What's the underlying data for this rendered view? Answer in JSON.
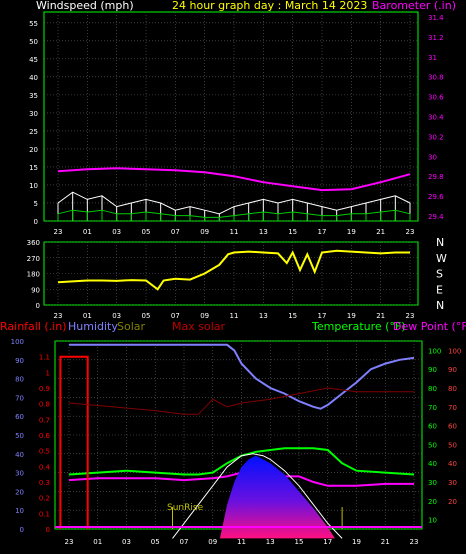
{
  "chart_data": [
    {
      "type": "line",
      "title": "24 hour graph day : March 14 2023",
      "ylabel_left": "Windspeed (mph)",
      "ylabel_right": "Barometer (.in)",
      "x_ticks": [
        "23",
        "01",
        "03",
        "05",
        "07",
        "09",
        "11",
        "13",
        "15",
        "17",
        "19",
        "21",
        "23"
      ],
      "y_left_ticks": [
        0,
        5,
        10,
        15,
        20,
        25,
        30,
        35,
        40,
        45,
        50,
        55
      ],
      "ylim_left": [
        0,
        58
      ],
      "y_right_ticks": [
        "29.4",
        "29.6",
        "29.8",
        "30",
        "30.2",
        "30.4",
        "30.6",
        "30.8",
        "31",
        "31.2",
        "31.4"
      ],
      "ylim_right": [
        29.35,
        31.45
      ],
      "series": [
        {
          "color": "#ffffff",
          "x": [
            0,
            1,
            2,
            3,
            4,
            5,
            6,
            7,
            8,
            9,
            10,
            11,
            12,
            13,
            14,
            15,
            16,
            17,
            18,
            19,
            20,
            21,
            22,
            23,
            24
          ],
          "values": [
            5,
            8,
            6,
            7,
            4,
            5,
            6,
            5,
            3,
            4,
            3,
            2,
            4,
            5,
            6,
            5,
            6,
            5,
            4,
            3,
            4,
            5,
            6,
            7,
            5
          ]
        },
        {
          "color": "#00cc00",
          "x": [
            0,
            1,
            2,
            3,
            4,
            5,
            6,
            7,
            8,
            9,
            10,
            11,
            12,
            13,
            14,
            15,
            16,
            17,
            18,
            19,
            20,
            21,
            22,
            23,
            24
          ],
          "values": [
            2,
            3,
            2.5,
            3,
            2,
            2,
            2.5,
            2,
            1.5,
            1.5,
            1,
            1,
            1.5,
            2,
            2.5,
            2,
            2.5,
            2,
            1.5,
            1.5,
            2,
            2,
            2.5,
            3,
            2
          ]
        },
        {
          "color": "#ff00ff",
          "x": [
            0,
            2,
            4,
            6,
            8,
            10,
            12,
            14,
            16,
            18,
            20,
            22,
            24
          ],
          "values": [
            29.85,
            29.87,
            29.88,
            29.87,
            29.86,
            29.84,
            29.8,
            29.74,
            29.7,
            29.66,
            29.67,
            29.74,
            29.82
          ]
        }
      ]
    },
    {
      "type": "scatter",
      "y_ticks": [
        0,
        90,
        180,
        270,
        360
      ],
      "ylim": [
        0,
        360
      ],
      "direction_labels": [
        "N",
        "W",
        "S",
        "E",
        "N"
      ],
      "x_ticks": [
        "23",
        "01",
        "03",
        "05",
        "07",
        "09",
        "11",
        "13",
        "15",
        "17",
        "19",
        "21",
        "23"
      ],
      "series": [
        {
          "color": "#ffff00",
          "x": [
            0,
            1,
            2,
            3,
            4,
            5,
            6,
            6.8,
            7.2,
            8,
            9,
            10,
            11,
            11.4,
            11.6,
            12,
            13,
            14,
            15,
            15.6,
            16,
            16.5,
            17,
            17.5,
            18,
            19,
            20,
            21,
            22,
            23,
            24
          ],
          "values": [
            130,
            135,
            140,
            140,
            138,
            142,
            140,
            90,
            140,
            150,
            145,
            180,
            230,
            270,
            290,
            300,
            305,
            300,
            295,
            240,
            300,
            200,
            290,
            190,
            300,
            310,
            305,
            300,
            295,
            300,
            300
          ]
        }
      ]
    },
    {
      "type": "line",
      "labels": {
        "rainfall": "Rainfall (.in)",
        "humidity": "Humidity",
        "solar": "Solar",
        "max_solar": "Max solar",
        "temperature": "Temperature (°F)",
        "dew_point": "Dew Point (°F)",
        "sunrise": "SunRise"
      },
      "x_ticks": [
        "23",
        "01",
        "03",
        "05",
        "07",
        "09",
        "11",
        "13",
        "15",
        "17",
        "19",
        "21",
        "23"
      ],
      "y_rain_ticks": [
        "0",
        "0.1",
        "0.2",
        "0.3",
        "0.4",
        "0.5",
        "0.6",
        "0.7",
        "0.8",
        "0.9",
        "1",
        "1.1"
      ],
      "y_hum_ticks": [
        0,
        10,
        20,
        30,
        40,
        50,
        60,
        70,
        80,
        90,
        100
      ],
      "y_temp_ticks": [
        10,
        20,
        30,
        40,
        50,
        60,
        70,
        80,
        90,
        100
      ],
      "y_dew_ticks": [
        20,
        30,
        40,
        50,
        60,
        70,
        80,
        90,
        100
      ],
      "series": [
        {
          "name": "Humidity",
          "color": "#8080ff",
          "x": [
            0,
            3,
            6,
            9,
            10.5,
            11,
            11.5,
            12,
            13,
            14,
            15,
            16,
            17,
            17.5,
            18,
            19,
            20,
            21,
            22,
            23,
            24
          ],
          "values": [
            98,
            98,
            98,
            98,
            98,
            98,
            95,
            88,
            80,
            75,
            72,
            68,
            65,
            64,
            66,
            72,
            78,
            85,
            88,
            90,
            91
          ]
        },
        {
          "name": "Temperature (°F)",
          "color": "#00ff00",
          "x": [
            0,
            2,
            4,
            6,
            8,
            9,
            10,
            11,
            12,
            13,
            14,
            15,
            16,
            17,
            18,
            19,
            20,
            22,
            24
          ],
          "values": [
            34,
            35,
            36,
            35,
            34,
            34,
            35,
            40,
            44,
            46,
            47,
            48,
            48,
            48,
            47,
            40,
            36,
            35,
            34
          ]
        },
        {
          "name": "Dew Point (°F)",
          "color": "#ff00ff",
          "x": [
            0,
            2,
            4,
            6,
            8,
            10,
            11,
            12,
            13,
            14,
            15,
            16,
            17,
            18,
            19,
            20,
            22,
            24
          ],
          "values": [
            31,
            32,
            32,
            32,
            31,
            32,
            33,
            35,
            35,
            34,
            33,
            33,
            30,
            28,
            28,
            28,
            29,
            29
          ]
        },
        {
          "name": "Max solar",
          "color": "#ffffff",
          "x": [
            7.2,
            8,
            9,
            10,
            11,
            12,
            12.8,
            13.5,
            14,
            15,
            16,
            17,
            18,
            19.0
          ],
          "values": [
            0,
            8,
            18,
            28,
            38,
            44,
            45,
            44,
            42,
            36,
            28,
            18,
            8,
            0
          ]
        },
        {
          "name": "Solar",
          "color": "#0000ff",
          "x": [
            10.5,
            11,
            11.5,
            12,
            12.5,
            13,
            13.5,
            14,
            15,
            16,
            17,
            18,
            18.5
          ],
          "values": [
            0,
            18,
            30,
            38,
            42,
            44,
            42,
            40,
            34,
            25,
            16,
            6,
            0
          ]
        },
        {
          "name": "Rainfall (.in)",
          "color": "#ff0000",
          "x": [
            -0.6,
            -0.6,
            1.3,
            1.3
          ],
          "values": [
            0,
            1.1,
            1.1,
            0
          ]
        },
        {
          "name": "Barometer trace",
          "color": "#800000",
          "x": [
            0,
            3,
            6,
            8,
            9,
            10,
            11,
            12,
            14,
            16,
            18,
            20,
            22,
            24
          ],
          "values": [
            72,
            70,
            68,
            66,
            66,
            74,
            70,
            72,
            74,
            77,
            80,
            78,
            78,
            78
          ]
        }
      ]
    }
  ]
}
